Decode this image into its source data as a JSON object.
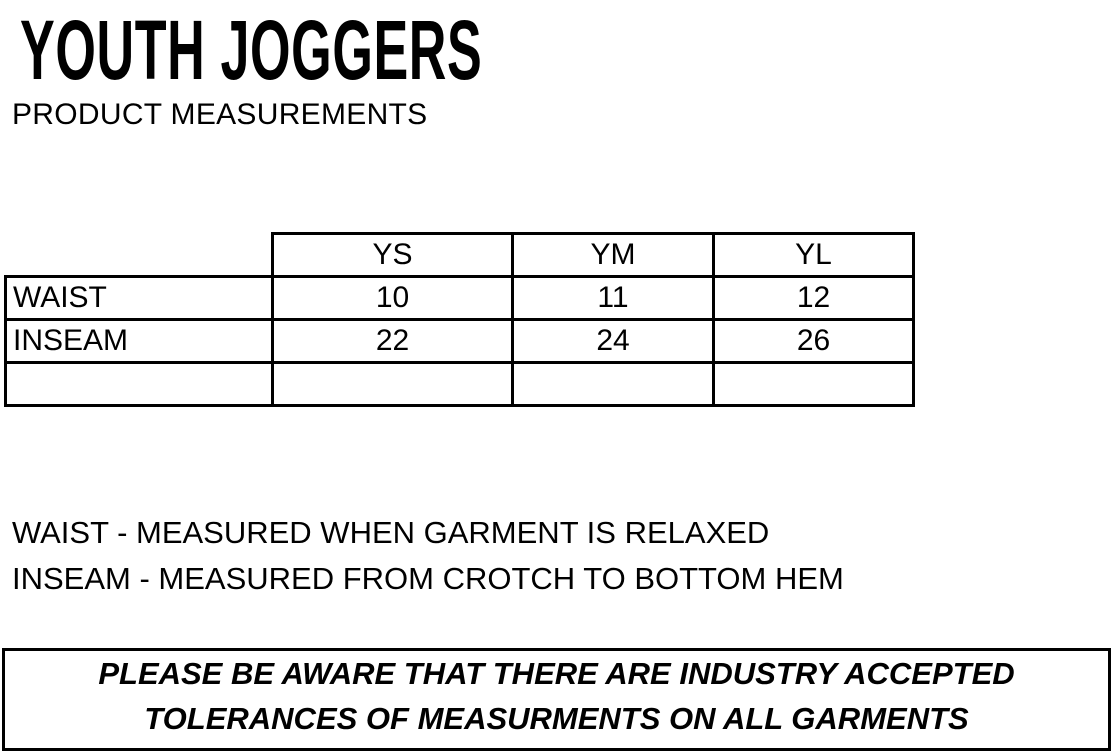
{
  "title": "YOUTH JOGGERS",
  "subtitle": "PRODUCT MEASUREMENTS",
  "table": {
    "headers": [
      "",
      "YS",
      "YM",
      "YL"
    ],
    "rows": [
      {
        "label": "WAIST",
        "values": [
          "10",
          "11",
          "12"
        ]
      },
      {
        "label": "INSEAM",
        "values": [
          "22",
          "24",
          "26"
        ]
      },
      {
        "label": "",
        "values": [
          "",
          "",
          ""
        ]
      }
    ]
  },
  "notes": [
    "WAIST - MEASURED WHEN GARMENT IS RELAXED",
    "INSEAM - MEASURED FROM CROTCH TO BOTTOM HEM"
  ],
  "disclaimer": {
    "line1": "PLEASE BE AWARE THAT THERE ARE INDUSTRY ACCEPTED",
    "line2": "TOLERANCES OF MEASURMENTS ON ALL GARMENTS"
  }
}
